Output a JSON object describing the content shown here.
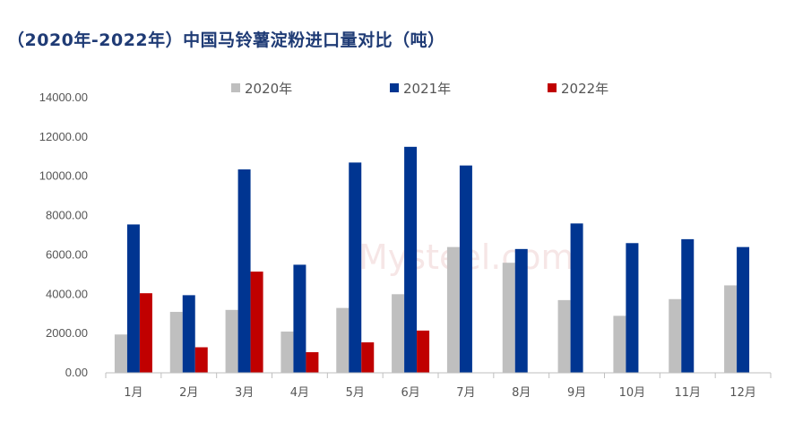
{
  "title": "（2020年-2022年）中国马铃薯淀粉进口量对比（吨）",
  "colors": {
    "s2020": "#BFBFBF",
    "s2021": "#003591",
    "s2022": "#C00000",
    "title": "#1F3B75"
  },
  "chart_data": {
    "type": "bar",
    "title": "（2020年-2022年）中国马铃薯淀粉进口量对比（吨）",
    "xlabel": "",
    "ylabel": "",
    "ylim": [
      0,
      14000
    ],
    "yticks": [
      "0.00",
      "2000.00",
      "4000.00",
      "6000.00",
      "8000.00",
      "10000.00",
      "12000.00",
      "14000.00"
    ],
    "grid": false,
    "legend_position": "top",
    "categories": [
      "1月",
      "2月",
      "3月",
      "4月",
      "5月",
      "6月",
      "7月",
      "8月",
      "9月",
      "10月",
      "11月",
      "12月"
    ],
    "series": [
      {
        "name": "2020年",
        "values": [
          1950,
          3100,
          3200,
          2100,
          3300,
          4000,
          6400,
          5600,
          3700,
          2900,
          3750,
          4450
        ]
      },
      {
        "name": "2021年",
        "values": [
          7550,
          3950,
          10350,
          5500,
          10700,
          11500,
          10550,
          6300,
          7600,
          6600,
          6800,
          6400
        ]
      },
      {
        "name": "2022年",
        "values": [
          4050,
          1300,
          5150,
          1050,
          1550,
          2150,
          null,
          null,
          null,
          null,
          null,
          null
        ]
      }
    ]
  }
}
